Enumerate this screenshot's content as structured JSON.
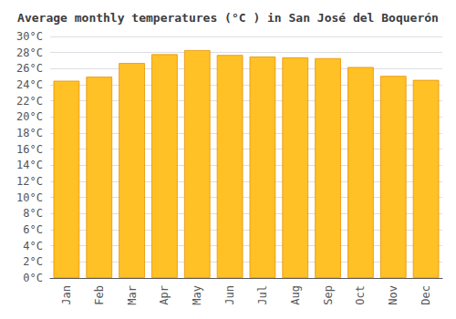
{
  "chart_data": {
    "type": "bar",
    "title": "Average monthly temperatures (°C ) in San José del Boquerón",
    "categories": [
      "Jan",
      "Feb",
      "Mar",
      "Apr",
      "May",
      "Jun",
      "Jul",
      "Aug",
      "Sep",
      "Oct",
      "Nov",
      "Dec"
    ],
    "values": [
      24.5,
      25.0,
      26.7,
      27.8,
      28.3,
      27.7,
      27.5,
      27.4,
      27.3,
      26.2,
      25.1,
      24.6
    ],
    "color": "#FFC125",
    "ylim": [
      0,
      30
    ],
    "yticks": [
      {
        "value": 0,
        "label": "0°C"
      },
      {
        "value": 2,
        "label": "2°C"
      },
      {
        "value": 4,
        "label": "4°C"
      },
      {
        "value": 6,
        "label": "6°C"
      },
      {
        "value": 8,
        "label": "8°C"
      },
      {
        "value": 10,
        "label": "10°C"
      },
      {
        "value": 12,
        "label": "12°C"
      },
      {
        "value": 14,
        "label": "14°C"
      },
      {
        "value": 16,
        "label": "16°C"
      },
      {
        "value": 18,
        "label": "18°C"
      },
      {
        "value": 20,
        "label": "20°C"
      },
      {
        "value": 22,
        "label": "22°C"
      },
      {
        "value": 24,
        "label": "24°C"
      },
      {
        "value": 26,
        "label": "26°C"
      },
      {
        "value": 28,
        "label": "28°C"
      },
      {
        "value": 30,
        "label": "30°C"
      }
    ],
    "grid": true
  }
}
